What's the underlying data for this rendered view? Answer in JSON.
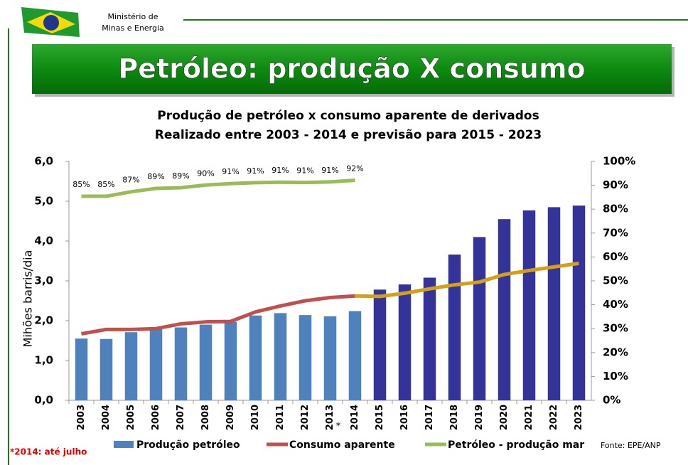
{
  "header": {
    "ministry": [
      "Ministério de",
      "Minas e Energia"
    ],
    "banner": "Petróleo: produção X consumo"
  },
  "chart_data": {
    "type": "bar_line",
    "title": "Produção de petróleo x consumo aparente de derivados",
    "subtitle": "Realizado entre 2003 - 2014 e previsão para 2015 - 2023",
    "y_label": "Mihões barris/dia",
    "categories": [
      "2003",
      "2004",
      "2005",
      "2006",
      "2007",
      "2008",
      "2009",
      "2010",
      "2011",
      "2012",
      "2013",
      "2014",
      "2015",
      "2016",
      "2017",
      "2018",
      "2019",
      "2020",
      "2021",
      "2022",
      "2023"
    ],
    "ylim": [
      0,
      6
    ],
    "yticks": [
      {
        "value": 0,
        "label": "0,0"
      },
      {
        "value": 1,
        "label": "1,0"
      },
      {
        "value": 2,
        "label": "2,0"
      },
      {
        "value": 3,
        "label": "3,0"
      },
      {
        "value": 4,
        "label": "4,0"
      },
      {
        "value": 5,
        "label": "5,0"
      },
      {
        "value": 6,
        "label": "6,0"
      }
    ],
    "y2lim": [
      0,
      100
    ],
    "y2ticks": [
      {
        "value": 0,
        "label": "0%"
      },
      {
        "value": 10,
        "label": "10%"
      },
      {
        "value": 20,
        "label": "20%"
      },
      {
        "value": 30,
        "label": "30%"
      },
      {
        "value": 40,
        "label": "40%"
      },
      {
        "value": 50,
        "label": "50%"
      },
      {
        "value": 60,
        "label": "60%"
      },
      {
        "value": 70,
        "label": "70%"
      },
      {
        "value": 80,
        "label": "80%"
      },
      {
        "value": 90,
        "label": "90%"
      },
      {
        "value": 100,
        "label": "100%"
      }
    ],
    "series": [
      {
        "name": "Produção petróleo",
        "kind": "bar",
        "colors": [
          "#4f81bd",
          "#4f81bd",
          "#4f81bd",
          "#4f81bd",
          "#4f81bd",
          "#4f81bd",
          "#4f81bd",
          "#4f81bd",
          "#4f81bd",
          "#4f81bd",
          "#4f81bd",
          "#4f81bd",
          "#333399",
          "#333399",
          "#333399",
          "#333399",
          "#333399",
          "#333399",
          "#333399",
          "#333399",
          "#333399"
        ],
        "values": [
          1.55,
          1.54,
          1.71,
          1.8,
          1.83,
          1.9,
          1.97,
          2.13,
          2.19,
          2.14,
          2.11,
          2.24,
          2.78,
          2.91,
          3.08,
          3.66,
          4.1,
          4.55,
          4.77,
          4.85,
          4.89
        ]
      },
      {
        "name": "Consumo aparente",
        "kind": "line",
        "colors": [
          "#c0504d",
          "#c0504d",
          "#c0504d",
          "#c0504d",
          "#c0504d",
          "#c0504d",
          "#c0504d",
          "#c0504d",
          "#c0504d",
          "#c0504d",
          "#c0504d",
          "#c0504d",
          "#d4a017",
          "#d4a017",
          "#d4a017",
          "#d4a017",
          "#d4a017",
          "#d4a017",
          "#d4a017",
          "#d4a017",
          "#d4a017"
        ],
        "values": [
          1.67,
          1.78,
          1.78,
          1.8,
          1.92,
          1.97,
          1.98,
          2.22,
          2.37,
          2.5,
          2.58,
          2.62,
          2.61,
          2.69,
          2.8,
          2.9,
          2.97,
          3.16,
          3.26,
          3.35,
          3.44
        ]
      },
      {
        "name": "Petróleo - produção mar",
        "kind": "line",
        "axis": "y2",
        "color": "#9bbb59",
        "values": [
          85.4,
          85.4,
          87.3,
          88.7,
          89.0,
          90.1,
          90.7,
          91.1,
          91.3,
          91.2,
          91.4,
          92.1,
          null,
          null,
          null,
          null,
          null,
          null,
          null,
          null,
          null
        ],
        "value_labels": [
          "85%",
          "85%",
          "87%",
          "89%",
          "89%",
          "90%",
          "91%",
          "91%",
          "91%",
          "91%",
          "91%",
          "92%",
          null,
          null,
          null,
          null,
          null,
          null,
          null,
          null,
          null
        ]
      }
    ],
    "annotations": [
      "*"
    ],
    "footnote": "*2014: até julho",
    "source": "Fonte: EPE/ANP"
  }
}
